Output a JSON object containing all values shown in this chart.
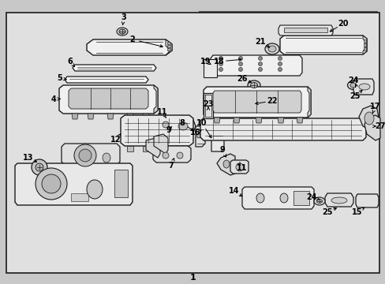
{
  "bg_color": "#c8c8c8",
  "outer_box_color": "#222222",
  "inner_box_color": "#555555",
  "line_color": "#1a1a1a",
  "label_color": "#111111",
  "white": "#ffffff",
  "gray_fill": "#e8e8e8",
  "dark_fill": "#aaaaaa"
}
